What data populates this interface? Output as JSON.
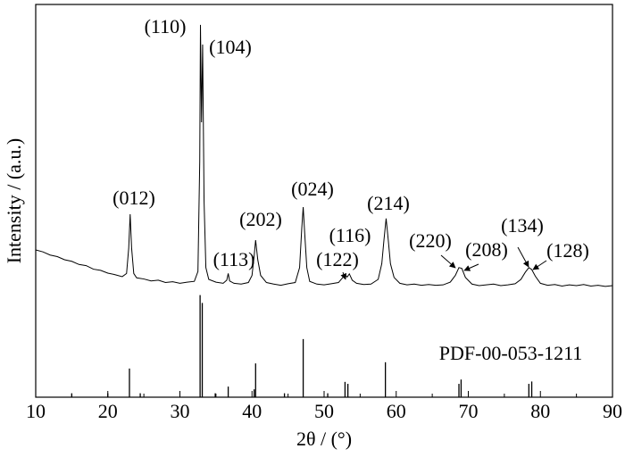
{
  "chart_data": {
    "type": "line",
    "xlabel": "2θ / (°)",
    "ylabel": "Intensity / (a.u.)",
    "xlim": [
      10,
      90
    ],
    "ylim": [
      0,
      100
    ],
    "xticks": [
      10,
      20,
      30,
      40,
      50,
      60,
      70,
      80,
      90
    ],
    "xticks_minor": [
      15,
      25,
      35,
      45,
      55,
      65,
      75,
      85
    ],
    "series": [
      {
        "color": "#000000",
        "x": [
          10,
          11,
          12,
          13,
          14,
          15,
          16,
          17,
          18,
          19,
          20,
          21,
          22,
          22.6,
          22.9,
          23.1,
          23.3,
          23.6,
          24,
          25,
          26,
          27,
          28,
          29,
          30,
          31,
          32,
          32.5,
          32.75,
          32.85,
          33.0,
          33.15,
          33.35,
          33.6,
          34,
          35,
          36,
          36.5,
          36.7,
          36.9,
          37.5,
          38.5,
          39.5,
          40,
          40.3,
          40.5,
          40.8,
          41.2,
          42,
          43,
          44,
          45,
          46,
          46.6,
          46.9,
          47.1,
          47.3,
          47.6,
          48,
          49,
          50,
          51,
          52,
          52.6,
          52.9,
          53.2,
          53.5,
          53.9,
          54.5,
          55.5,
          56.5,
          57.5,
          58,
          58.3,
          58.6,
          58.9,
          59.2,
          59.7,
          60.5,
          61.5,
          62.5,
          63.5,
          64.5,
          65.5,
          66.5,
          67.5,
          68.2,
          68.7,
          69.1,
          69.6,
          70.5,
          71.5,
          72.5,
          73.5,
          74.5,
          75.5,
          76.5,
          77.3,
          77.9,
          78.4,
          78.8,
          79.3,
          80,
          81,
          82,
          83,
          84,
          85,
          86,
          87,
          88,
          89,
          90
        ],
        "values": [
          37.5,
          37,
          36.2,
          35.8,
          35,
          34.6,
          33.8,
          33.5,
          32.6,
          32.3,
          31.6,
          31.2,
          30.7,
          31.5,
          38,
          46.6,
          38,
          31.5,
          30.4,
          30.1,
          29.6,
          29.8,
          29.2,
          29.4,
          29,
          29.3,
          29.5,
          32,
          60,
          94.8,
          70,
          89.8,
          50,
          33,
          30,
          29.3,
          29,
          29.8,
          31.5,
          29.6,
          29,
          28.8,
          29.2,
          31,
          36,
          40,
          35,
          31,
          29.2,
          28.8,
          28.5,
          28.9,
          29.2,
          33,
          43,
          48.4,
          42,
          33,
          29.5,
          28.8,
          28.6,
          28.9,
          29.2,
          30.5,
          31.2,
          30.6,
          31.4,
          29.8,
          29,
          28.7,
          28.8,
          30,
          34,
          40,
          45.5,
          40,
          34,
          30.5,
          29,
          28.6,
          28.8,
          28.5,
          28.7,
          28.5,
          28.6,
          29.3,
          31,
          33,
          32.8,
          30.5,
          28.8,
          28.4,
          28.6,
          28.8,
          28.4,
          28.6,
          28.9,
          30,
          31.8,
          33,
          32.5,
          30.8,
          29,
          28.5,
          28.7,
          28.3,
          28.6,
          28.4,
          28.7,
          28.3,
          28.5,
          28.2,
          28.4
        ]
      }
    ],
    "reference": {
      "name": "PDF-00-053-1211",
      "color": "#000000",
      "x": [
        15,
        20,
        23.0,
        24.5,
        32.8,
        33.1,
        34.9,
        36.7,
        40.3,
        40.5,
        44.5,
        47.1,
        50.5,
        52.9,
        53.3,
        58.5,
        68.7,
        69.0,
        78.4,
        78.8
      ],
      "values": [
        1,
        1,
        7.3,
        1,
        26,
        24,
        1,
        2.7,
        2,
        8.6,
        1,
        14.8,
        1,
        3.9,
        3.4,
        8.9,
        3.4,
        4.5,
        3.4,
        4
      ]
    },
    "annotations": [
      "(110)",
      "(104)",
      "(012)",
      "(113)",
      "(202)",
      "(024)",
      "(116)",
      "(122)",
      "(214)",
      "(220)",
      "(208)",
      "(134)",
      "(128)"
    ]
  }
}
